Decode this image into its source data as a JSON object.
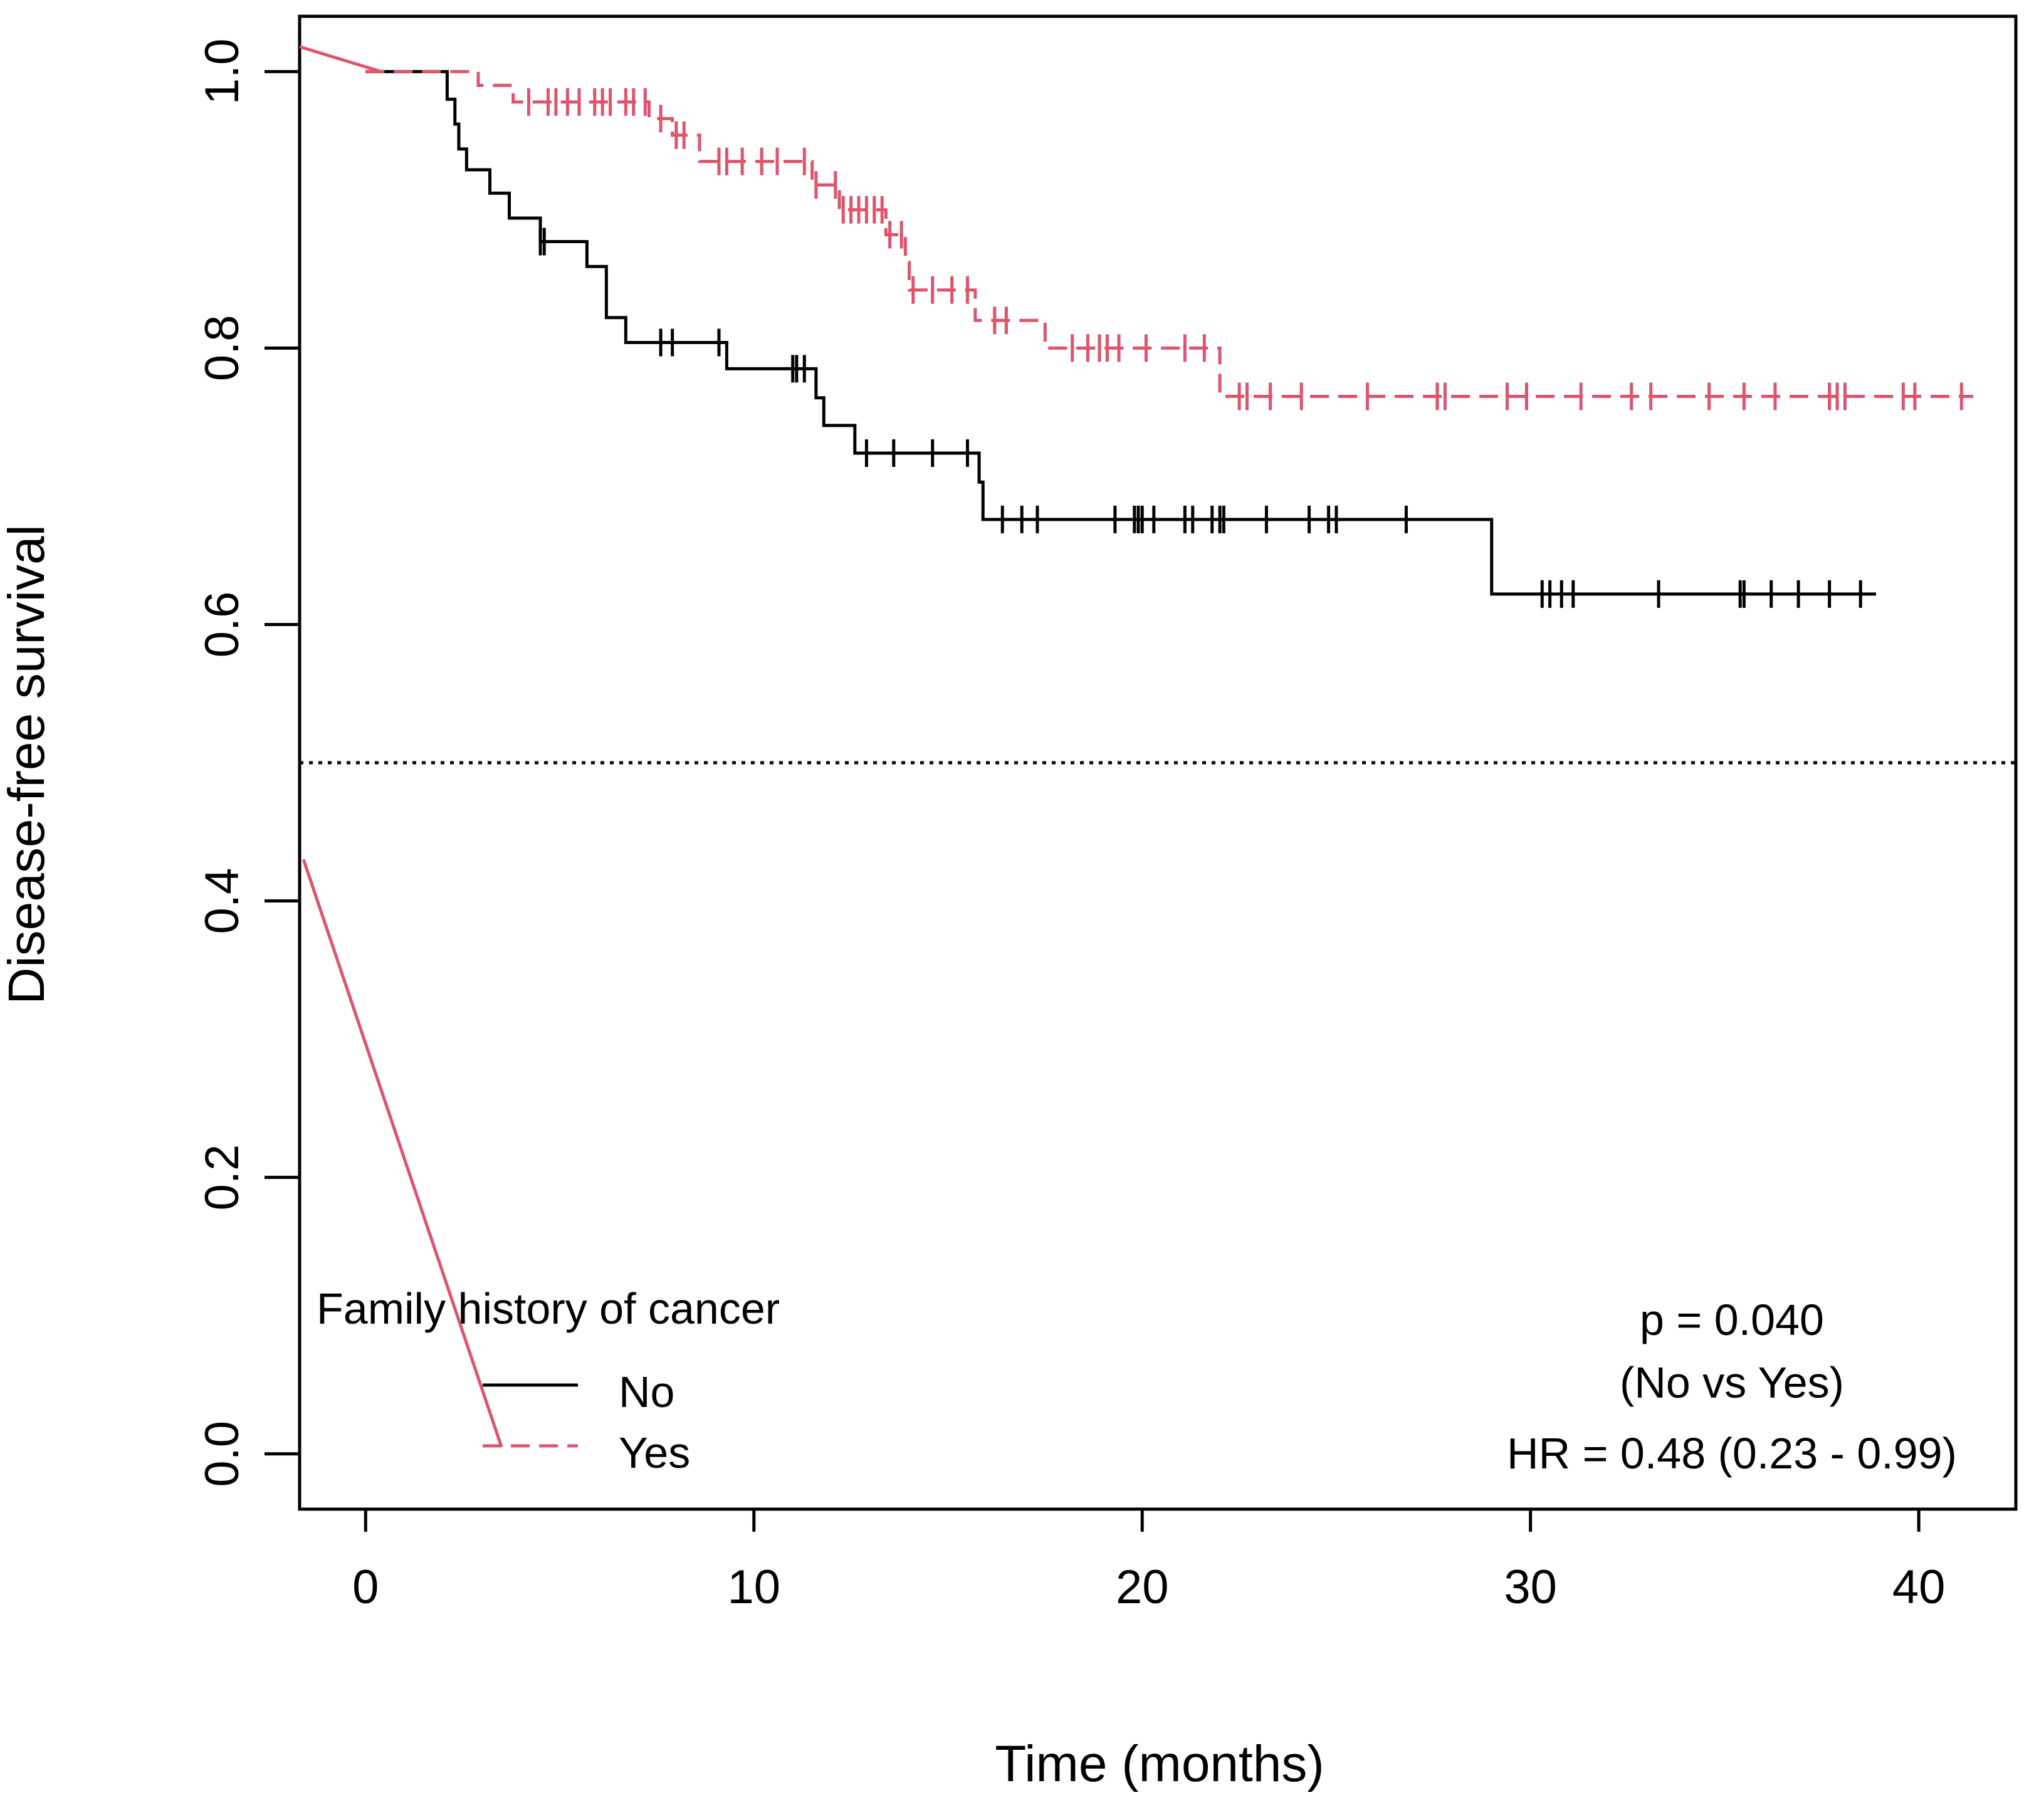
{
  "chart_data": {
    "type": "line",
    "subtype": "kaplan-meier",
    "xlabel": "Time (months)",
    "ylabel": "Disease-free survival",
    "xlim": [
      -1.7,
      42.5
    ],
    "ylim": [
      -0.04,
      1.04
    ],
    "xticks": [
      0,
      10,
      20,
      30,
      40
    ],
    "yticks": [
      0.0,
      0.2,
      0.4,
      0.6,
      0.8,
      1.0
    ],
    "xtick_labels": [
      "0",
      "10",
      "20",
      "30",
      "40"
    ],
    "ytick_labels": [
      "0.0",
      "0.2",
      "0.4",
      "0.6",
      "0.8",
      "1.0"
    ],
    "reference_line": {
      "y": 0.5,
      "style": "dotted"
    },
    "series": [
      {
        "name": "No",
        "color": "#000000",
        "dash": "solid",
        "steps": [
          [
            0,
            1.0
          ],
          [
            2.1,
            0.98
          ],
          [
            2.3,
            0.962
          ],
          [
            2.4,
            0.944
          ],
          [
            2.6,
            0.929
          ],
          [
            3.2,
            0.912
          ],
          [
            3.7,
            0.894
          ],
          [
            4.5,
            0.877
          ],
          [
            5.7,
            0.859
          ],
          [
            6.2,
            0.822
          ],
          [
            6.7,
            0.804
          ],
          [
            9.3,
            0.785
          ],
          [
            11.6,
            0.764
          ],
          [
            11.8,
            0.744
          ],
          [
            12.6,
            0.724
          ],
          [
            15.8,
            0.703
          ],
          [
            15.9,
            0.676
          ],
          [
            29.0,
            0.622
          ]
        ],
        "end": 38.9,
        "censor_times": [
          4.5,
          4.6,
          7.6,
          7.9,
          9.1,
          11.0,
          11.1,
          11.3,
          12.9,
          13.6,
          14.6,
          15.5,
          16.4,
          16.9,
          17.3,
          19.3,
          19.8,
          19.9,
          20.0,
          20.3,
          21.1,
          21.3,
          21.8,
          22.0,
          22.1,
          23.2,
          24.3,
          24.8,
          25.0,
          26.8,
          30.3,
          30.5,
          30.8,
          31.1,
          33.3,
          35.4,
          35.5,
          36.2,
          36.9,
          37.7,
          38.5
        ]
      },
      {
        "name": "Yes",
        "color": "#DF536B",
        "dash": "dashed",
        "steps": [
          [
            0,
            1.0
          ],
          [
            2.9,
            0.99
          ],
          [
            3.8,
            0.978
          ],
          [
            7.3,
            0.966
          ],
          [
            7.9,
            0.954
          ],
          [
            8.6,
            0.935
          ],
          [
            11.5,
            0.918
          ],
          [
            12.2,
            0.9
          ],
          [
            13.4,
            0.882
          ],
          [
            13.9,
            0.862
          ],
          [
            14.0,
            0.842
          ],
          [
            15.7,
            0.82
          ],
          [
            17.5,
            0.8
          ],
          [
            22.0,
            0.765
          ]
        ],
        "end": 41.4,
        "censor_times": [
          4.2,
          4.7,
          4.9,
          5.2,
          5.5,
          5.9,
          6.1,
          6.3,
          6.7,
          6.9,
          7.2,
          7.6,
          8.0,
          8.2,
          9.1,
          9.3,
          9.7,
          10.2,
          10.6,
          11.3,
          11.6,
          12.1,
          12.3,
          12.5,
          12.7,
          12.9,
          13.1,
          13.3,
          13.5,
          13.8,
          14.1,
          14.6,
          15.1,
          15.5,
          16.2,
          16.5,
          18.2,
          18.6,
          18.9,
          19.1,
          19.4,
          20.1,
          21.1,
          21.6,
          22.5,
          22.7,
          23.3,
          24.1,
          25.8,
          27.6,
          27.8,
          29.4,
          29.9,
          31.3,
          32.6,
          33.1,
          34.6,
          35.5,
          36.3,
          37.7,
          37.9,
          38.1,
          39.6,
          39.9,
          41.1
        ]
      }
    ],
    "artifact_line": {
      "color": "#DF536B",
      "from": [
        -1.6,
        0.43
      ],
      "to": [
        3.5,
        0.005
      ]
    },
    "legend": {
      "title": "Family history of cancer",
      "entries": [
        "No",
        "Yes"
      ],
      "position": "bottom-left"
    },
    "annotations": [
      "p = 0.040",
      "(No vs Yes)",
      "HR = 0.48 (0.23 - 0.99)"
    ]
  }
}
